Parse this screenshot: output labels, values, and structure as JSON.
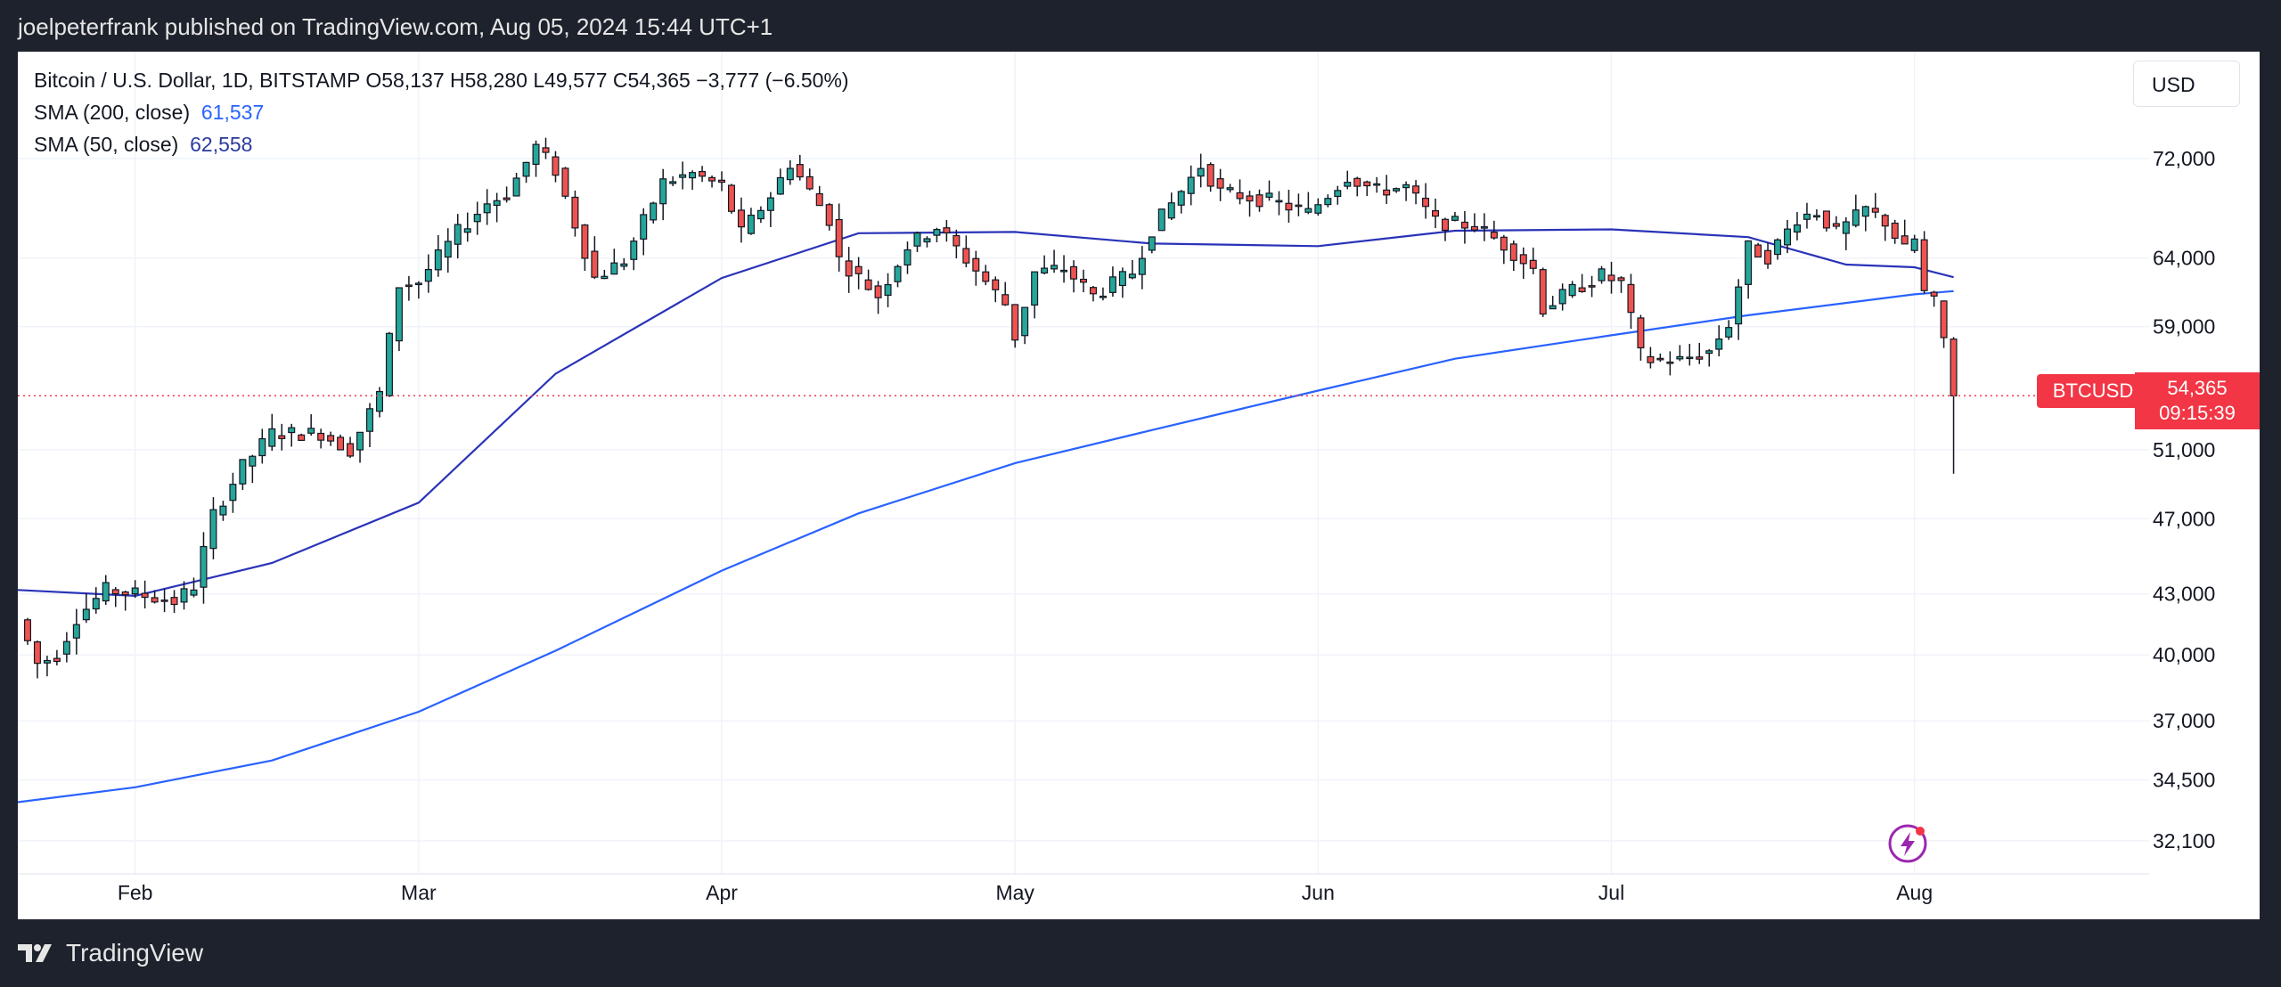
{
  "header": {
    "published": "joelpeterfrank published on TradingView.com, Aug 05, 2024 15:44 UTC+1"
  },
  "legend": {
    "symbol_line": "Bitcoin / U.S. Dollar, 1D, BITSTAMP  O58,137  H58,280  L49,577  C54,365  −3,777 (−6.50%)",
    "sma200_label": "SMA (200, close)",
    "sma200_value": "61,537",
    "sma50_label": "SMA (50, close)",
    "sma50_value": "62,558"
  },
  "currency": "USD",
  "price_tag": {
    "symbol": "BTCUSD",
    "price": "54,365",
    "countdown": "09:15:39"
  },
  "footer": {
    "brand": "TradingView"
  },
  "colors": {
    "up": "#26a69a",
    "down": "#ef5350",
    "sma200": "#2962ff",
    "sma50": "#2a33b8",
    "tag": "#f23645"
  },
  "chart_data": {
    "type": "candlestick",
    "log_scale": true,
    "ylim": [
      30000,
      80000
    ],
    "xlim": [
      "2024-01-20",
      "2024-08-25"
    ],
    "y_ticks": [
      {
        "value": 72000,
        "label": "72,000"
      },
      {
        "value": 64000,
        "label": "64,000"
      },
      {
        "value": 59000,
        "label": "59,000"
      },
      {
        "value": 51000,
        "label": "51,000"
      },
      {
        "value": 47000,
        "label": "47,000"
      },
      {
        "value": 43000,
        "label": "43,000"
      },
      {
        "value": 40000,
        "label": "40,000"
      },
      {
        "value": 37000,
        "label": "37,000"
      },
      {
        "value": 34500,
        "label": "34,500"
      },
      {
        "value": 32100,
        "label": "32,100"
      }
    ],
    "x_ticks": [
      {
        "date": "2024-02-01",
        "label": "Feb"
      },
      {
        "date": "2024-03-01",
        "label": "Mar"
      },
      {
        "date": "2024-04-01",
        "label": "Apr"
      },
      {
        "date": "2024-05-01",
        "label": "May"
      },
      {
        "date": "2024-06-01",
        "label": "Jun"
      },
      {
        "date": "2024-07-01",
        "label": "Jul"
      },
      {
        "date": "2024-08-01",
        "label": "Aug"
      }
    ],
    "last_price": 54365,
    "anchors": [
      [
        "2024-01-20",
        41700
      ],
      [
        "2024-01-22",
        39600
      ],
      [
        "2024-01-24",
        40000
      ],
      [
        "2024-01-26",
        41800
      ],
      [
        "2024-01-29",
        43200
      ],
      [
        "2024-02-01",
        43000
      ],
      [
        "2024-02-05",
        42600
      ],
      [
        "2024-02-07",
        43400
      ],
      [
        "2024-02-09",
        47200
      ],
      [
        "2024-02-12",
        50000
      ],
      [
        "2024-02-15",
        52000
      ],
      [
        "2024-02-20",
        52000
      ],
      [
        "2024-02-23",
        51000
      ],
      [
        "2024-02-26",
        54500
      ],
      [
        "2024-02-28",
        62000
      ],
      [
        "2024-03-01",
        62200
      ],
      [
        "2024-03-05",
        66000
      ],
      [
        "2024-03-08",
        68300
      ],
      [
        "2024-03-10",
        69000
      ],
      [
        "2024-03-13",
        73000
      ],
      [
        "2024-03-15",
        71000
      ],
      [
        "2024-03-19",
        62500
      ],
      [
        "2024-03-22",
        63800
      ],
      [
        "2024-03-26",
        70000
      ],
      [
        "2024-03-29",
        70700
      ],
      [
        "2024-04-01",
        69700
      ],
      [
        "2024-04-03",
        65900
      ],
      [
        "2024-04-06",
        68900
      ],
      [
        "2024-04-08",
        71600
      ],
      [
        "2024-04-12",
        67000
      ],
      [
        "2024-04-13",
        63900
      ],
      [
        "2024-04-17",
        61200
      ],
      [
        "2024-04-20",
        64900
      ],
      [
        "2024-04-23",
        66400
      ],
      [
        "2024-04-27",
        63100
      ],
      [
        "2024-04-30",
        60600
      ],
      [
        "2024-05-01",
        58300
      ],
      [
        "2024-05-03",
        62900
      ],
      [
        "2024-05-06",
        63200
      ],
      [
        "2024-05-09",
        61200
      ],
      [
        "2024-05-13",
        62900
      ],
      [
        "2024-05-15",
        66200
      ],
      [
        "2024-05-20",
        71400
      ],
      [
        "2024-05-22",
        69200
      ],
      [
        "2024-05-27",
        68500
      ],
      [
        "2024-05-31",
        67500
      ],
      [
        "2024-06-04",
        70500
      ],
      [
        "2024-06-07",
        69300
      ],
      [
        "2024-06-10",
        69600
      ],
      [
        "2024-06-13",
        66800
      ],
      [
        "2024-06-17",
        66500
      ],
      [
        "2024-06-20",
        65000
      ],
      [
        "2024-06-23",
        63200
      ],
      [
        "2024-06-24",
        60300
      ],
      [
        "2024-06-27",
        61600
      ],
      [
        "2024-06-30",
        62700
      ],
      [
        "2024-07-02",
        62100
      ],
      [
        "2024-07-04",
        57100
      ],
      [
        "2024-07-05",
        56700
      ],
      [
        "2024-07-08",
        56700
      ],
      [
        "2024-07-11",
        57300
      ],
      [
        "2024-07-13",
        59200
      ],
      [
        "2024-07-15",
        64800
      ],
      [
        "2024-07-17",
        64100
      ],
      [
        "2024-07-20",
        67100
      ],
      [
        "2024-07-22",
        67600
      ],
      [
        "2024-07-24",
        65900
      ],
      [
        "2024-07-27",
        67800
      ],
      [
        "2024-07-29",
        66800
      ],
      [
        "2024-07-31",
        64600
      ],
      [
        "2024-08-01",
        65400
      ],
      [
        "2024-08-02",
        61400
      ],
      [
        "2024-08-03",
        60700
      ],
      [
        "2024-08-04",
        58137
      ],
      [
        "2024-08-05",
        54365
      ]
    ],
    "last_candle": {
      "date": "2024-08-05",
      "open": 58137,
      "high": 58280,
      "low": 49577,
      "close": 54365
    },
    "sma_series": [
      {
        "name": "SMA (200, close)",
        "points": [
          [
            "2024-01-20",
            33600
          ],
          [
            "2024-02-01",
            34200
          ],
          [
            "2024-02-15",
            35300
          ],
          [
            "2024-03-01",
            37400
          ],
          [
            "2024-03-15",
            40200
          ],
          [
            "2024-04-01",
            44200
          ],
          [
            "2024-04-15",
            47300
          ],
          [
            "2024-05-01",
            50200
          ],
          [
            "2024-05-15",
            52200
          ],
          [
            "2024-06-01",
            54700
          ],
          [
            "2024-06-15",
            56800
          ],
          [
            "2024-07-01",
            58400
          ],
          [
            "2024-07-15",
            59800
          ],
          [
            "2024-08-01",
            61300
          ],
          [
            "2024-08-05",
            61537
          ]
        ]
      },
      {
        "name": "SMA (50, close)",
        "points": [
          [
            "2024-01-20",
            43200
          ],
          [
            "2024-02-01",
            42900
          ],
          [
            "2024-02-15",
            44600
          ],
          [
            "2024-03-01",
            47900
          ],
          [
            "2024-03-15",
            55800
          ],
          [
            "2024-04-01",
            62500
          ],
          [
            "2024-04-15",
            65900
          ],
          [
            "2024-05-01",
            66000
          ],
          [
            "2024-05-15",
            65100
          ],
          [
            "2024-06-01",
            64900
          ],
          [
            "2024-06-15",
            66100
          ],
          [
            "2024-07-01",
            66200
          ],
          [
            "2024-07-15",
            65600
          ],
          [
            "2024-07-25",
            63500
          ],
          [
            "2024-08-01",
            63300
          ],
          [
            "2024-08-05",
            62558
          ]
        ]
      }
    ]
  }
}
